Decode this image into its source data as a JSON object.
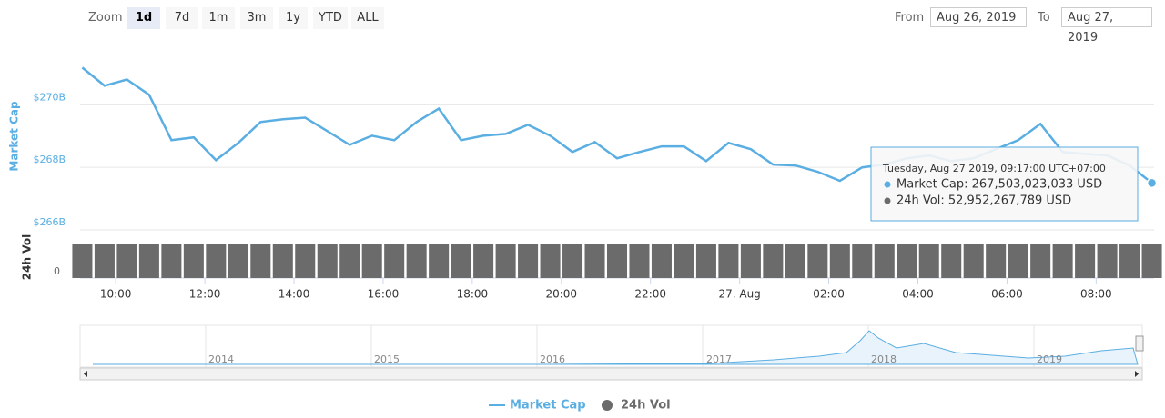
{
  "toolbar": {
    "zoom_label": "Zoom",
    "buttons": [
      "1d",
      "7d",
      "1m",
      "3m",
      "1y",
      "YTD",
      "ALL"
    ],
    "from_label": "From",
    "from_value": "Aug 26, 2019",
    "to_label": "To",
    "to_value": "Aug 27, 2019"
  },
  "chart_data": {
    "type": "line",
    "y_label": "Market Cap",
    "y2_label": "24h Vol",
    "x": [
      9.25,
      9.75,
      10.25,
      10.75,
      11.25,
      11.75,
      12.25,
      12.75,
      13.25,
      13.75,
      14.25,
      14.75,
      15.25,
      15.75,
      16.25,
      16.75,
      17.25,
      17.75,
      18.25,
      18.75,
      19.25,
      19.75,
      20.25,
      20.75,
      21.25,
      21.75,
      22.25,
      22.75,
      23.25,
      23.75,
      24.25,
      24.75,
      25.25,
      25.75,
      26.25,
      26.75,
      27.25,
      27.75,
      28.25,
      28.75,
      29.25,
      29.75,
      30.25,
      30.75,
      31.25,
      31.75,
      32.25,
      32.75,
      33.25
    ],
    "series": [
      {
        "name": "Market Cap",
        "color": "#5aaee2",
        "values": [
          271.19,
          270.61,
          270.81,
          270.32,
          268.87,
          268.96,
          268.23,
          268.78,
          269.45,
          269.54,
          269.59,
          269.16,
          268.72,
          269.01,
          268.87,
          269.45,
          269.88,
          268.87,
          269.01,
          269.07,
          269.36,
          269.01,
          268.49,
          268.81,
          268.29,
          268.49,
          268.67,
          268.67,
          268.2,
          268.78,
          268.58,
          268.09,
          268.06,
          267.86,
          267.57,
          268.0,
          268.09,
          268.29,
          268.38,
          268.2,
          268.29,
          268.58,
          268.87,
          269.39,
          268.49,
          268.43,
          268.38,
          268.06,
          267.5
        ]
      },
      {
        "name": "24h Vol",
        "color": "#6b6b6b",
        "axis": "y2",
        "type": "bar",
        "values": [
          53.1,
          53.1,
          53.0,
          53.1,
          53.0,
          53.0,
          53.0,
          53.1,
          53.1,
          53.1,
          53.1,
          53.0,
          53.0,
          53.0,
          53.1,
          53.1,
          53.2,
          53.2,
          53.2,
          53.3,
          53.3,
          53.2,
          53.2,
          53.2,
          53.2,
          53.2,
          53.2,
          53.2,
          53.2,
          53.2,
          53.2,
          53.2,
          53.1,
          53.1,
          53.1,
          53.1,
          53.1,
          53.1,
          53.1,
          53.1,
          53.1,
          53.1,
          53.1,
          53.1,
          53.0,
          53.0,
          53.0,
          53.0,
          52.95
        ]
      }
    ],
    "xlim": [
      9.2,
      33.3
    ],
    "xticks": [
      {
        "value": 10,
        "label": "10:00"
      },
      {
        "value": 12,
        "label": "12:00"
      },
      {
        "value": 14,
        "label": "14:00"
      },
      {
        "value": 16,
        "label": "16:00"
      },
      {
        "value": 18,
        "label": "18:00"
      },
      {
        "value": 20,
        "label": "20:00"
      },
      {
        "value": 22,
        "label": "22:00"
      },
      {
        "value": 24,
        "label": "27. Aug"
      },
      {
        "value": 26,
        "label": "02:00"
      },
      {
        "value": 28,
        "label": "04:00"
      },
      {
        "value": 30,
        "label": "06:00"
      },
      {
        "value": 32,
        "label": "08:00"
      }
    ],
    "ylim": [
      266,
      271.9
    ],
    "yticks": [
      {
        "value": 266,
        "label": "$266B"
      },
      {
        "value": 268,
        "label": "$268B"
      },
      {
        "value": 270,
        "label": "$270B"
      }
    ],
    "y2lim": [
      0,
      62
    ],
    "y2ticks": [
      0
    ],
    "grid": true
  },
  "tooltip": {
    "date": "Tuesday, Aug 27 2019, 09:17:00 UTC+07:00",
    "rows": [
      "Market Cap: 267,503,023,033 USD",
      "24h Vol: 52,952,267,789 USD"
    ]
  },
  "navigator": {
    "labels": [
      "2014",
      "2015",
      "2016",
      "2017",
      "2018",
      "2019"
    ]
  }
}
